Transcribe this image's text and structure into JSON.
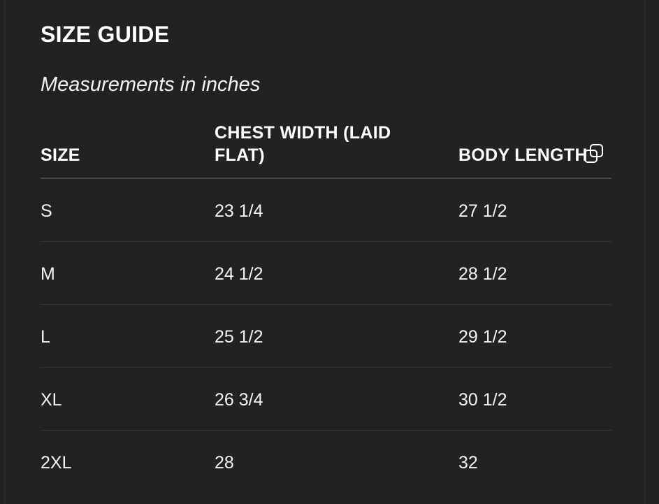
{
  "title": "SIZE GUIDE",
  "subtitle": "Measurements in inches",
  "table": {
    "headers": [
      "SIZE",
      "CHEST WIDTH (LAID FLAT)",
      "BODY LENGTH"
    ],
    "rows": [
      [
        "S",
        "23 1/4",
        "27 1/2"
      ],
      [
        "M",
        "24 1/2",
        "28 1/2"
      ],
      [
        "L",
        "25 1/2",
        "29 1/2"
      ],
      [
        "XL",
        "26 3/4",
        "30 1/2"
      ],
      [
        "2XL",
        "28",
        "32"
      ]
    ]
  },
  "icons": {
    "copy": "copy-icon"
  },
  "colors": {
    "background": "#222222",
    "text": "#ffffff",
    "divider": "#363636"
  }
}
